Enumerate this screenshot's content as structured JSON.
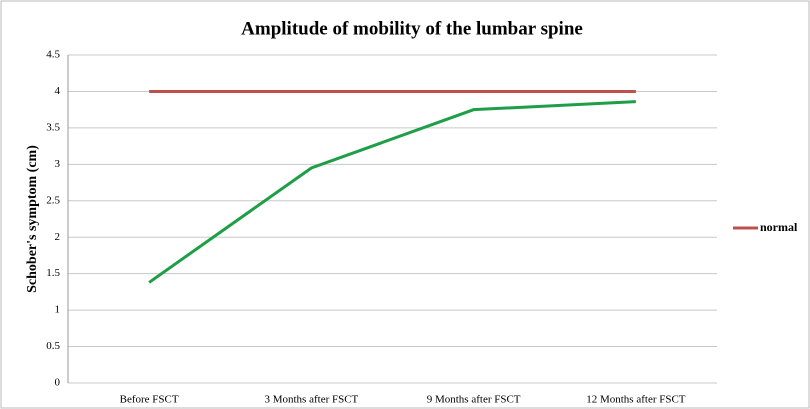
{
  "chart_data": {
    "type": "line",
    "title": "Amplitude of mobility of the lumbar spine",
    "y_label": "Schober's symptom (cm)",
    "categories": [
      "Before FSCT",
      "3 Months after FSCT",
      "9 Months after FSCT",
      "12 Months after FSCT"
    ],
    "series": [
      {
        "name": "normal",
        "color": "#c0504d",
        "values": [
          4,
          4,
          4,
          4
        ]
      },
      {
        "color": "#1e9e47",
        "values": [
          1.38,
          2.95,
          3.75,
          3.86
        ]
      }
    ],
    "ylim": [
      0,
      4.5
    ],
    "yticks": [
      0,
      0.5,
      1,
      1.5,
      2,
      2.5,
      3,
      3.5,
      4,
      4.5
    ],
    "grid": true,
    "legend": "right"
  }
}
